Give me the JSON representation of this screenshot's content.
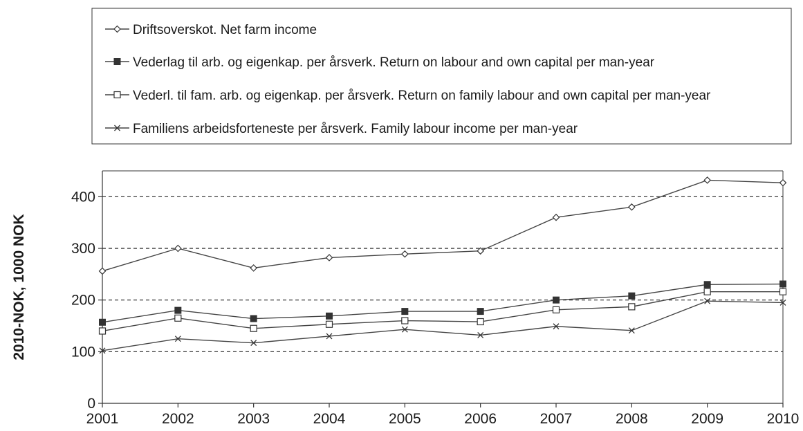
{
  "chart_data": {
    "type": "line",
    "title": "",
    "xlabel": "",
    "ylabel": "2010-NOK, 1000 NOK",
    "ylim": [
      0,
      450
    ],
    "yticks": [
      0,
      100,
      200,
      300,
      400
    ],
    "x": [
      "2001",
      "2002",
      "2003",
      "2004",
      "2005",
      "2006",
      "2007",
      "2008",
      "2009",
      "2010"
    ],
    "grid": "horizontal dashed at 100, 200, 300, 400",
    "legend_position": "top",
    "series": [
      {
        "name": "Driftsoverskot. Net farm income",
        "marker": "open-diamond",
        "values": [
          256,
          300,
          262,
          282,
          289,
          295,
          360,
          380,
          432,
          427
        ]
      },
      {
        "name": "Vederlag til arb. og eigenkap. per årsverk. Return on labour and own capital per man-year",
        "marker": "filled-square",
        "values": [
          157,
          180,
          164,
          169,
          178,
          178,
          200,
          208,
          230,
          231
        ]
      },
      {
        "name": "Vederl. til fam. arb. og eigenkap. per årsverk. Return on family labour and own capital per man-year",
        "marker": "open-square",
        "values": [
          140,
          165,
          145,
          153,
          160,
          158,
          181,
          187,
          216,
          216
        ]
      },
      {
        "name": "Familiens arbeidsforteneste per årsverk. Family labour income per man-year",
        "marker": "cross",
        "values": [
          102,
          125,
          117,
          130,
          143,
          132,
          149,
          141,
          198,
          195
        ]
      }
    ]
  }
}
